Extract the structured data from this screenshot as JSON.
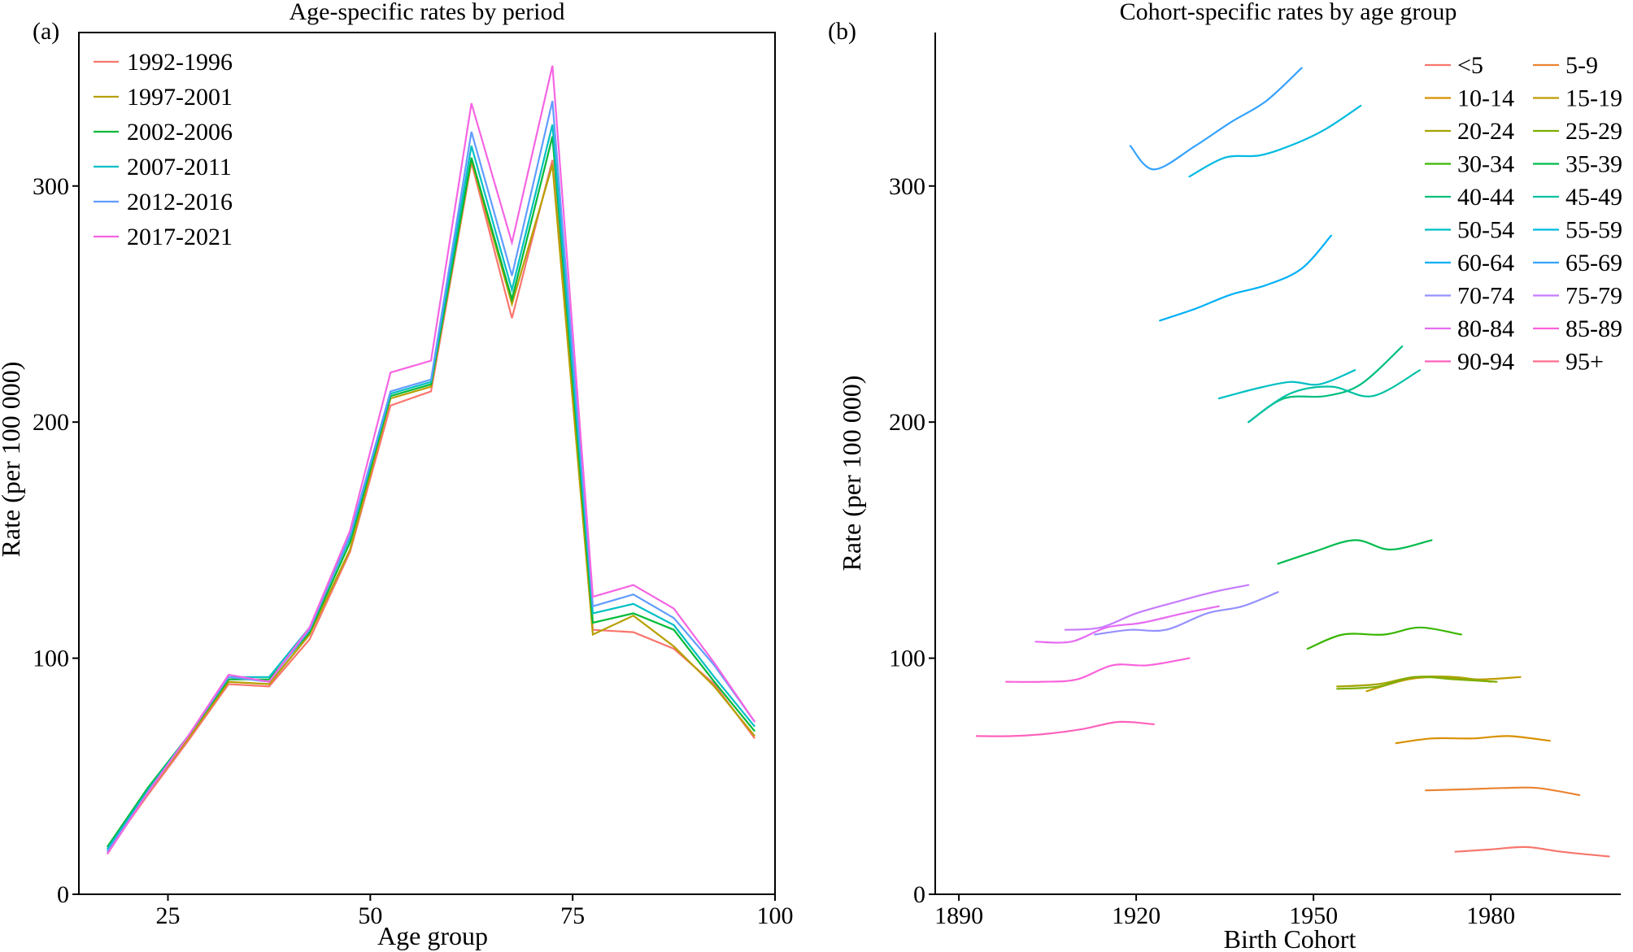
{
  "chart_data": [
    {
      "panel": "(a)",
      "type": "line",
      "title": "Age-specific rates by period",
      "xlabel": "Age group",
      "ylabel": "Rate (per 100 000)",
      "xlim": [
        14,
        100
      ],
      "ylim": [
        0,
        365
      ],
      "xticks": [
        25,
        50,
        75,
        100
      ],
      "yticks": [
        0,
        100,
        200,
        300
      ],
      "legend_position": "top-left",
      "x": [
        17.5,
        22.5,
        27.5,
        32.5,
        37.5,
        42.5,
        47.5,
        52.5,
        57.5,
        62.5,
        67.5,
        72.5,
        77.5,
        82.5,
        87.5,
        92.5,
        97.5
      ],
      "series": [
        {
          "name": "1992-1996",
          "color": "#F8766D",
          "values": [
            18,
            42,
            65,
            89,
            88,
            108,
            145,
            207,
            213,
            310,
            244,
            311,
            112,
            111,
            104,
            89,
            66
          ]
        },
        {
          "name": "1997-2001",
          "color": "#B79F00",
          "values": [
            17,
            43,
            66,
            90,
            89,
            110,
            146,
            210,
            215,
            311,
            250,
            309,
            110,
            118,
            105,
            88,
            67
          ]
        },
        {
          "name": "2002-2006",
          "color": "#00BA38",
          "values": [
            20,
            45,
            67,
            91,
            91,
            111,
            149,
            211,
            216,
            312,
            252,
            321,
            115,
            119,
            112,
            90,
            69
          ]
        },
        {
          "name": "2007-2011",
          "color": "#00BFC4",
          "values": [
            19,
            44,
            67,
            92,
            92,
            113,
            151,
            212,
            217,
            317,
            256,
            326,
            119,
            123,
            114,
            92,
            71
          ]
        },
        {
          "name": "2012-2016",
          "color": "#619CFF",
          "values": [
            18,
            43,
            67,
            92,
            90,
            112,
            152,
            213,
            218,
            323,
            262,
            336,
            122,
            127,
            117,
            97,
            73
          ]
        },
        {
          "name": "2017-2021",
          "color": "#F564E3",
          "values": [
            17,
            43,
            67,
            93,
            90,
            113,
            154,
            221,
            226,
            335,
            276,
            351,
            126,
            131,
            121,
            98,
            73
          ]
        }
      ]
    },
    {
      "panel": "(b)",
      "type": "line",
      "title": "Cohort-specific rates by age group",
      "xlabel": "Birth Cohort",
      "ylabel": "Rate (per 100 000)",
      "xlim": [
        1886,
        2002
      ],
      "ylim": [
        0,
        365
      ],
      "xticks": [
        1890,
        1920,
        1950,
        1980
      ],
      "yticks": [
        0,
        100,
        200,
        300
      ],
      "legend_position": "top-right",
      "series": [
        {
          "name": "<5",
          "color": "#F8766D",
          "x": [
            1974,
            1980,
            1986,
            1992,
            2000
          ],
          "values": [
            18,
            19,
            20,
            18,
            16
          ]
        },
        {
          "name": "5-9",
          "color": "#EA8331",
          "x": [
            1969,
            1976,
            1982,
            1988,
            1995
          ],
          "values": [
            44,
            44.5,
            45,
            45,
            42
          ]
        },
        {
          "name": "10-14",
          "color": "#D89000",
          "x": [
            1964,
            1970,
            1977,
            1983,
            1990
          ],
          "values": [
            64,
            66,
            66,
            67,
            65
          ]
        },
        {
          "name": "15-19",
          "color": "#C09B00",
          "x": [
            1959,
            1966,
            1972,
            1978,
            1985
          ],
          "values": [
            86,
            91,
            92,
            91,
            92
          ]
        },
        {
          "name": "20-24",
          "color": "#A3A500",
          "x": [
            1954,
            1961,
            1967,
            1974,
            1980
          ],
          "values": [
            88,
            89,
            92,
            92,
            90
          ]
        },
        {
          "name": "25-29",
          "color": "#7CAE00",
          "x": [
            1954,
            1961,
            1967,
            1974,
            1981
          ],
          "values": [
            87,
            88,
            92,
            91,
            90
          ]
        },
        {
          "name": "30-34",
          "color": "#39B600",
          "x": [
            1949,
            1955,
            1962,
            1968,
            1975
          ],
          "values": [
            104,
            110,
            110,
            113,
            110
          ]
        },
        {
          "name": "35-39",
          "color": "#00BB4E",
          "x": [
            1944,
            1950,
            1957,
            1963,
            1970
          ],
          "values": [
            140,
            145,
            150,
            146,
            150
          ]
        },
        {
          "name": "40-44",
          "color": "#00BF7D",
          "x": [
            1939,
            1945,
            1952,
            1958,
            1965
          ],
          "values": [
            200,
            210,
            211,
            216,
            232
          ]
        },
        {
          "name": "45-49",
          "color": "#00C1A3",
          "x": [
            1939,
            1946,
            1953,
            1960,
            1968
          ],
          "values": [
            200,
            212,
            215,
            211,
            222
          ]
        },
        {
          "name": "50-54",
          "color": "#00BFC4",
          "x": [
            1934,
            1940,
            1946,
            1951,
            1957
          ],
          "values": [
            210,
            214,
            217,
            216,
            222
          ]
        },
        {
          "name": "55-59",
          "color": "#00BAE0",
          "x": [
            1929,
            1935,
            1941,
            1947,
            1952,
            1958
          ],
          "values": [
            304,
            312,
            313,
            318,
            324,
            334
          ]
        },
        {
          "name": "60-64",
          "color": "#00B0F6",
          "x": [
            1924,
            1930,
            1936,
            1942,
            1948,
            1953
          ],
          "values": [
            243,
            248,
            254,
            258,
            265,
            279
          ]
        },
        {
          "name": "65-69",
          "color": "#35A2FF",
          "x": [
            1919,
            1923,
            1930,
            1936,
            1942,
            1948
          ],
          "values": [
            317,
            307,
            317,
            327,
            336,
            350
          ]
        },
        {
          "name": "70-74",
          "color": "#9590FF",
          "x": [
            1913,
            1919,
            1925,
            1932,
            1938,
            1944
          ],
          "values": [
            110,
            112,
            112,
            119,
            122,
            128
          ]
        },
        {
          "name": "75-79",
          "color": "#C77CFF",
          "x": [
            1908,
            1914,
            1920,
            1927,
            1933,
            1939
          ],
          "values": [
            112,
            113,
            119,
            124,
            128,
            131
          ]
        },
        {
          "name": "80-84",
          "color": "#E76BF3",
          "x": [
            1903,
            1909,
            1915,
            1921,
            1928,
            1934
          ],
          "values": [
            107,
            107,
            113,
            115,
            119,
            122
          ]
        },
        {
          "name": "85-89",
          "color": "#FA62DB",
          "x": [
            1898,
            1904,
            1910,
            1916,
            1922,
            1929
          ],
          "values": [
            90,
            90,
            91,
            97,
            97,
            100
          ]
        },
        {
          "name": "90-94",
          "color": "#FF62BC",
          "x": [
            1893,
            1899,
            1905,
            1911,
            1917,
            1923
          ],
          "values": [
            67,
            67,
            68,
            70,
            73,
            72
          ]
        },
        {
          "name": "95+",
          "color": "#FF6C91",
          "x": [],
          "values": []
        }
      ]
    }
  ]
}
